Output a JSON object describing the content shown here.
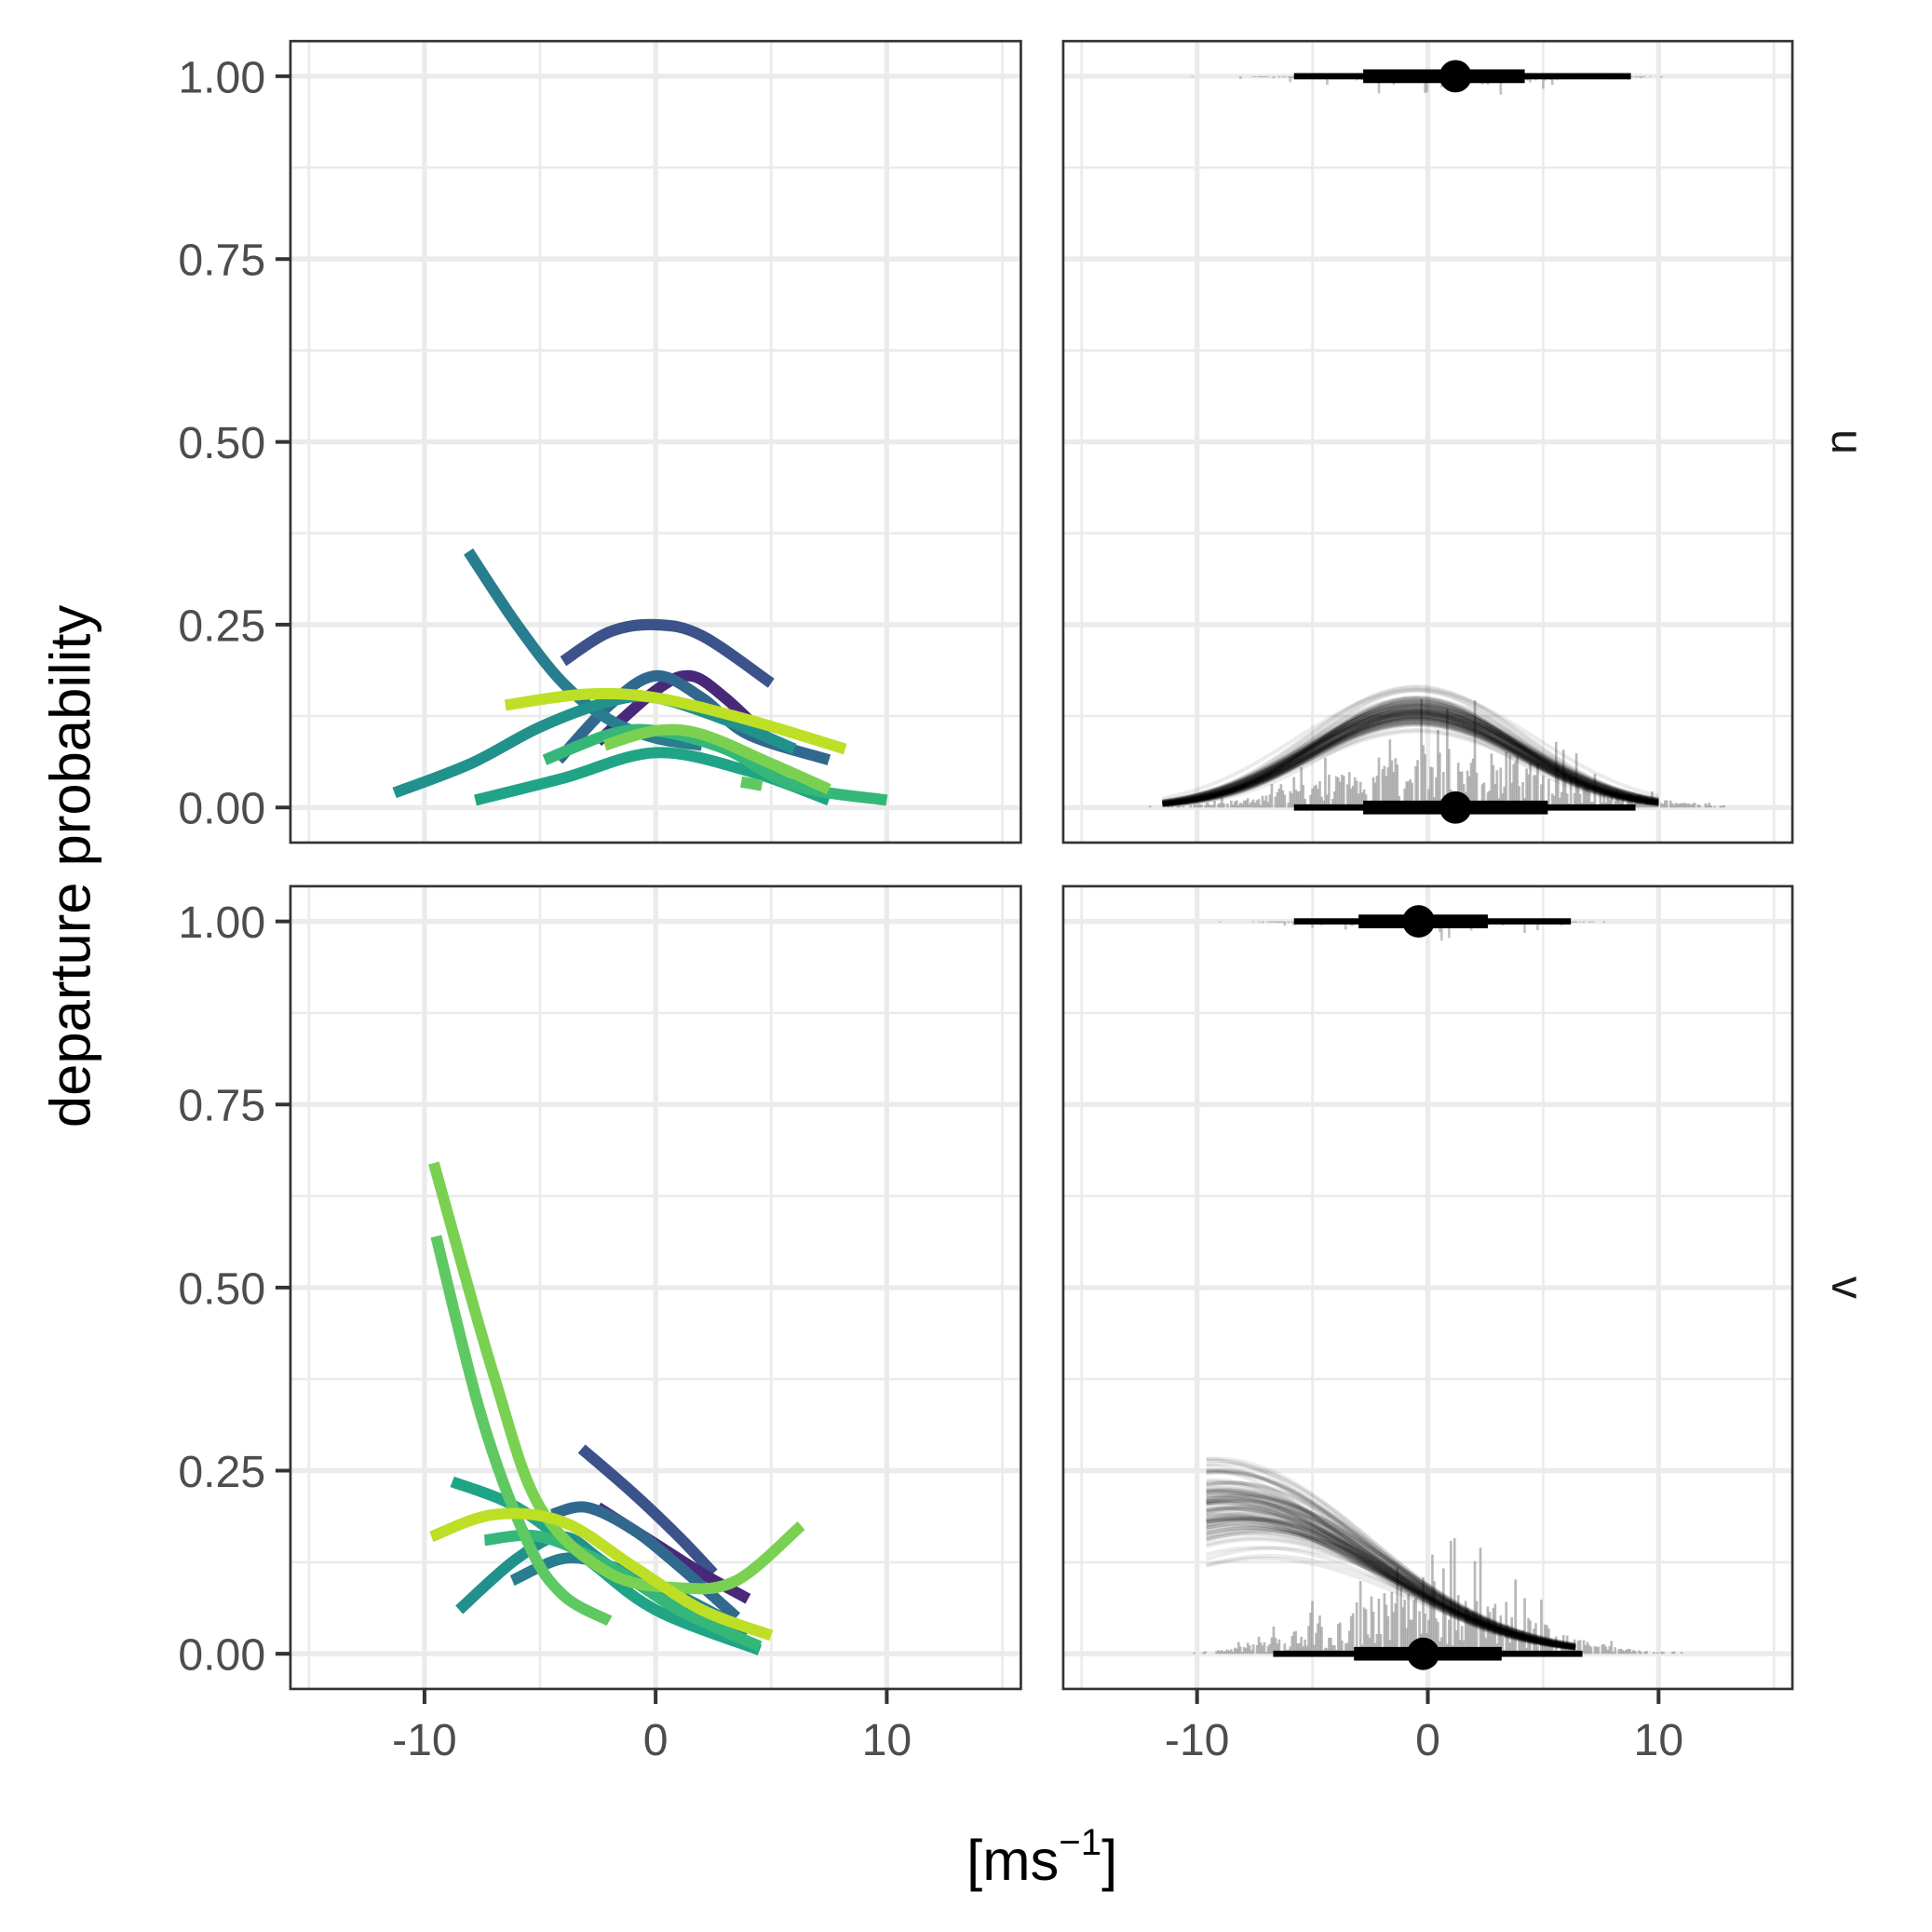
{
  "chart_data": {
    "type": "line",
    "ylabel": "departure probability",
    "xlabel_base": "[ms",
    "xlabel_sup": "−1",
    "xlabel_end": "]",
    "xlim": [
      -15.8,
      15.8
    ],
    "ylim": [
      -0.048,
      1.048
    ],
    "x_ticks": [
      -10,
      0,
      10
    ],
    "x_tick_labels": [
      "-10",
      "0",
      "10"
    ],
    "y_ticks": [
      0,
      0.25,
      0.5,
      0.75,
      1
    ],
    "y_tick_labels": [
      "0.00",
      "0.25",
      "0.50",
      "0.75",
      "1.00"
    ],
    "grid": true,
    "rows": [
      {
        "strip": "u",
        "group_curves": [
          {
            "color": "#3b528b",
            "points": [
              [
                -4,
                0.2
              ],
              [
                -2,
                0.24
              ],
              [
                0,
                0.25
              ],
              [
                2,
                0.235
              ],
              [
                5,
                0.17
              ]
            ]
          },
          {
            "color": "#482878",
            "points": [
              [
                -2.5,
                0.09
              ],
              [
                0,
                0.16
              ],
              [
                1.5,
                0.18
              ],
              [
                3,
                0.15
              ],
              [
                5,
                0.09
              ]
            ]
          },
          {
            "color": "#31688e",
            "points": [
              [
                -4.2,
                0.065
              ],
              [
                -2,
                0.14
              ],
              [
                0,
                0.18
              ],
              [
                2,
                0.15
              ],
              [
                4,
                0.1
              ],
              [
                7.5,
                0.065
              ]
            ]
          },
          {
            "color": "#287d8e",
            "points": [
              [
                -8.1,
                0.35
              ],
              [
                -6,
                0.25
              ],
              [
                -4,
                0.17
              ],
              [
                -2,
                0.12
              ],
              [
                0,
                0.095
              ],
              [
                2,
                0.085
              ]
            ]
          },
          {
            "color": "#21918c",
            "points": [
              [
                -11.3,
                0.02
              ],
              [
                -8,
                0.06
              ],
              [
                -5,
                0.11
              ],
              [
                -2,
                0.145
              ],
              [
                0,
                0.15
              ],
              [
                3,
                0.12
              ],
              [
                6,
                0.08
              ]
            ]
          },
          {
            "color": "#20a486",
            "points": [
              [
                -7.8,
                0.01
              ],
              [
                -4,
                0.04
              ],
              [
                0,
                0.075
              ],
              [
                4,
                0.05
              ],
              [
                7.5,
                0.01
              ]
            ]
          },
          {
            "color": "#35b779",
            "points": [
              [
                -4.8,
                0.065
              ],
              [
                -2,
                0.1
              ],
              [
                0,
                0.105
              ],
              [
                3,
                0.08
              ],
              [
                6,
                0.03
              ],
              [
                10,
                0.01
              ]
            ]
          },
          {
            "color": "#5ec962",
            "points": [
              [
                3.7,
                0.035
              ],
              [
                4.6,
                0.03
              ]
            ]
          },
          {
            "color": "#7ad151",
            "points": [
              [
                -2.2,
                0.085
              ],
              [
                0,
                0.105
              ],
              [
                2,
                0.1
              ],
              [
                5,
                0.06
              ],
              [
                7.5,
                0.025
              ]
            ]
          },
          {
            "color": "#bddf26",
            "points": [
              [
                -6.5,
                0.14
              ],
              [
                -3,
                0.155
              ],
              [
                0,
                0.15
              ],
              [
                4,
                0.12
              ],
              [
                8.2,
                0.08
              ]
            ]
          }
        ],
        "posterior_mean": {
          "x_range": [
            -11.5,
            10
          ],
          "logit_intercept": -1.9,
          "logit_center": -0.5,
          "logit_curvature": -0.028
        },
        "interval_at_1": {
          "median": 1.2,
          "inner": [
            -2.8,
            4.2
          ],
          "outer": [
            -5.8,
            8.8
          ]
        },
        "interval_at_0": {
          "median": 1.2,
          "inner": [
            -2.8,
            5.2
          ],
          "outer": [
            -5.8,
            9.0
          ]
        }
      },
      {
        "strip": "v",
        "group_curves": [
          {
            "color": "#3b528b",
            "points": [
              [
                -3.2,
                0.28
              ],
              [
                -1,
                0.22
              ],
              [
                1,
                0.16
              ],
              [
                2.5,
                0.11
              ]
            ]
          },
          {
            "color": "#482878",
            "points": [
              [
                -2.5,
                0.2
              ],
              [
                0,
                0.15
              ],
              [
                2,
                0.11
              ],
              [
                4,
                0.075
              ]
            ]
          },
          {
            "color": "#31688e",
            "points": [
              [
                -4.5,
                0.19
              ],
              [
                -3,
                0.2
              ],
              [
                -1,
                0.17
              ],
              [
                1,
                0.12
              ],
              [
                3.5,
                0.05
              ]
            ]
          },
          {
            "color": "#287d8e",
            "points": [
              [
                -6.2,
                0.1
              ],
              [
                -4,
                0.13
              ],
              [
                -2,
                0.12
              ],
              [
                1,
                0.08
              ],
              [
                4,
                0.03
              ]
            ]
          },
          {
            "color": "#21918c",
            "points": [
              [
                -8.5,
                0.06
              ],
              [
                -6,
                0.13
              ],
              [
                -4,
                0.16
              ],
              [
                -2,
                0.12
              ],
              [
                2,
                0.04
              ]
            ]
          },
          {
            "color": "#20a486",
            "points": [
              [
                -8.8,
                0.235
              ],
              [
                -6,
                0.2
              ],
              [
                -3,
                0.13
              ],
              [
                0,
                0.06
              ],
              [
                4.5,
                0.005
              ]
            ]
          },
          {
            "color": "#35b779",
            "points": [
              [
                -7.4,
                0.155
              ],
              [
                -5,
                0.16
              ],
              [
                -2,
                0.12
              ],
              [
                1,
                0.06
              ],
              [
                4.5,
                0.01
              ]
            ]
          },
          {
            "color": "#5ec962",
            "points": [
              [
                -9.5,
                0.57
              ],
              [
                -7.5,
                0.32
              ],
              [
                -5.5,
                0.15
              ],
              [
                -4,
                0.08
              ],
              [
                -2,
                0.045
              ]
            ]
          },
          {
            "color": "#7ad151",
            "points": [
              [
                -9.6,
                0.67
              ],
              [
                -7,
                0.38
              ],
              [
                -5,
                0.2
              ],
              [
                -2,
                0.11
              ],
              [
                1,
                0.09
              ],
              [
                3.5,
                0.1
              ],
              [
                6.3,
                0.175
              ]
            ]
          },
          {
            "color": "#bddf26",
            "points": [
              [
                -9.7,
                0.16
              ],
              [
                -7,
                0.19
              ],
              [
                -4,
                0.18
              ],
              [
                -1,
                0.12
              ],
              [
                2,
                0.06
              ],
              [
                5,
                0.025
              ]
            ]
          }
        ],
        "posterior_mean": {
          "x_range": [
            -9.6,
            6.5
          ],
          "logit_intercept": -2.44,
          "logit_slope": -0.25,
          "logit_quad": -0.015
        },
        "interval_at_1": {
          "median": -0.4,
          "inner": [
            -3.0,
            2.6
          ],
          "outer": [
            -5.8,
            6.2
          ]
        },
        "interval_at_0": {
          "median": -0.2,
          "inner": [
            -3.2,
            3.2
          ],
          "outer": [
            -6.7,
            6.7
          ]
        }
      }
    ]
  }
}
